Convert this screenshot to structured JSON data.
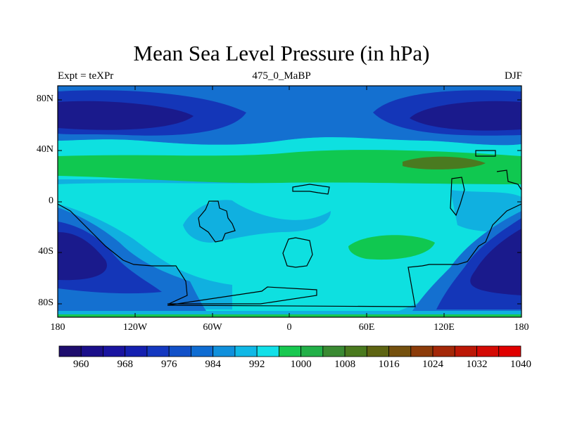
{
  "title": "Mean Sea Level Pressure (in hPa)",
  "left_label": "Expt = teXPr",
  "center_label": "475_0_MaBP",
  "right_label": "DJF",
  "lat_ticks": [
    "80N",
    "40N",
    "0",
    "40S",
    "80S"
  ],
  "lon_ticks": [
    "180",
    "120W",
    "60W",
    "0",
    "60E",
    "120E",
    "180"
  ],
  "colorbar": {
    "tick_labels": [
      "960",
      "968",
      "976",
      "984",
      "992",
      "1000",
      "1008",
      "1016",
      "1024",
      "1032",
      "1040"
    ],
    "colors": [
      "#1e0d6e",
      "#1b0f8a",
      "#1a14a0",
      "#1520b0",
      "#1438c0",
      "#1150c8",
      "#0f6cd2",
      "#1090dc",
      "#10b8e6",
      "#12e0e8",
      "#18c850",
      "#22b048",
      "#3a8a32",
      "#4a7a1e",
      "#5e6412",
      "#74500e",
      "#8c3c0a",
      "#a42808",
      "#bc1806",
      "#d40a04",
      "#e00000"
    ]
  },
  "fill_colors": {
    "deep_low": "#1a1a8c",
    "low": "#1436b8",
    "mid_blue": "#1470d0",
    "light_blue": "#10b0e0",
    "cyan": "#0ee0e0",
    "green": "#10c850",
    "olive": "#4a7a20"
  }
}
